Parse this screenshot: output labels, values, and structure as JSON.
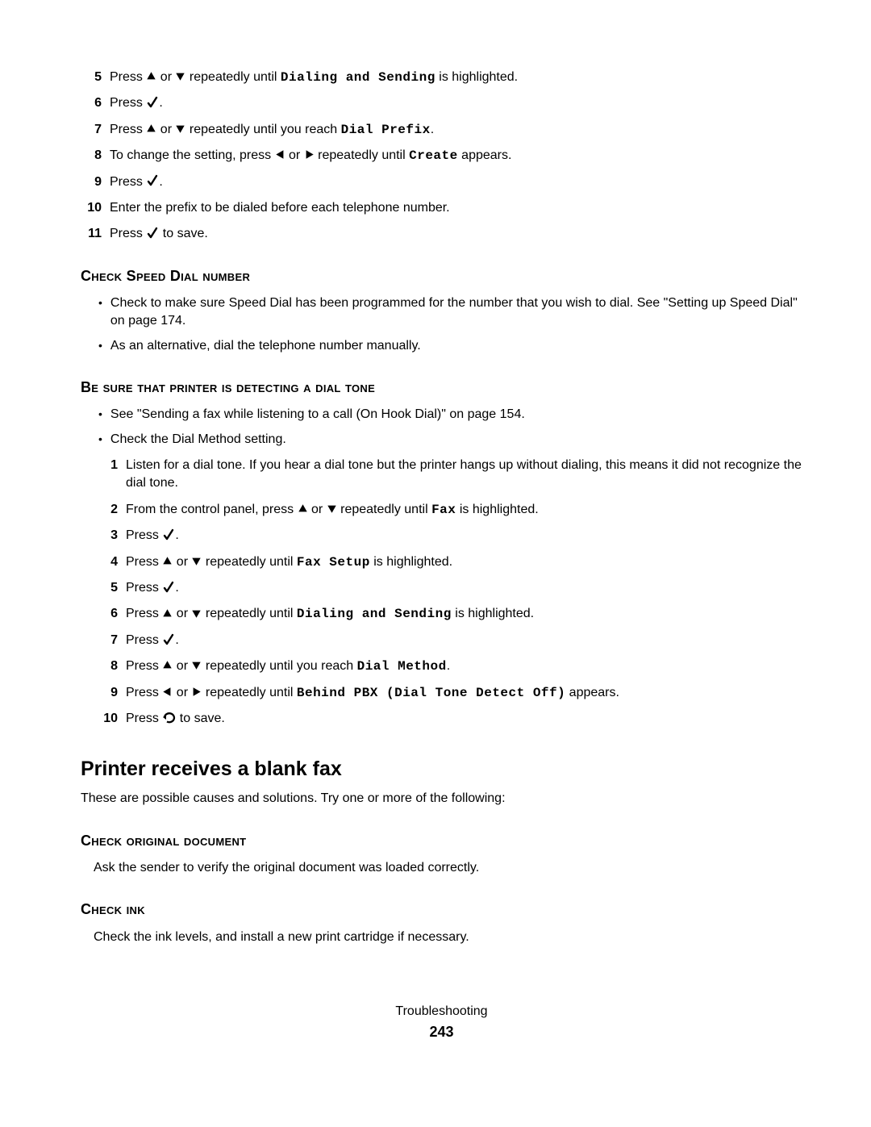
{
  "icons": {
    "up": "▲",
    "down": "▼",
    "left": "◀",
    "right": "▶",
    "check": "√",
    "back": "↶"
  },
  "steps1": [
    {
      "n": "5",
      "parts": [
        {
          "t": "Press "
        },
        {
          "icon": "up"
        },
        {
          "t": " or "
        },
        {
          "icon": "down"
        },
        {
          "t": " repeatedly until "
        },
        {
          "mono": "Dialing and Sending"
        },
        {
          "t": " is highlighted."
        }
      ]
    },
    {
      "n": "6",
      "parts": [
        {
          "t": "Press "
        },
        {
          "icon": "check"
        },
        {
          "t": "."
        }
      ]
    },
    {
      "n": "7",
      "parts": [
        {
          "t": "Press "
        },
        {
          "icon": "up"
        },
        {
          "t": " or "
        },
        {
          "icon": "down"
        },
        {
          "t": " repeatedly until you reach "
        },
        {
          "mono": "Dial Prefix"
        },
        {
          "t": "."
        }
      ]
    },
    {
      "n": "8",
      "parts": [
        {
          "t": "To change the setting, press "
        },
        {
          "icon": "left"
        },
        {
          "t": " or "
        },
        {
          "icon": "right"
        },
        {
          "t": " repeatedly until "
        },
        {
          "mono": "Create"
        },
        {
          "t": " appears."
        }
      ]
    },
    {
      "n": "9",
      "parts": [
        {
          "t": "Press "
        },
        {
          "icon": "check"
        },
        {
          "t": "."
        }
      ]
    },
    {
      "n": "10",
      "parts": [
        {
          "t": "Enter the prefix to be dialed before each telephone number."
        }
      ]
    },
    {
      "n": "11",
      "parts": [
        {
          "t": "Press "
        },
        {
          "icon": "check"
        },
        {
          "t": " to save."
        }
      ]
    }
  ],
  "sec1": {
    "title": "Check Speed Dial number",
    "bullets": [
      [
        {
          "t": "Check to make sure Speed Dial has been programmed for the number that you wish to dial. See \"Setting up Speed Dial\" on page 174."
        }
      ],
      [
        {
          "t": "As an alternative, dial the telephone number manually."
        }
      ]
    ]
  },
  "sec2": {
    "title": "Be sure that printer is detecting a dial tone",
    "bullets": [
      [
        {
          "t": "See \"Sending a fax while listening to a call (On Hook Dial)\" on page 154."
        }
      ],
      [
        {
          "t": "Check the Dial Method setting."
        }
      ]
    ],
    "steps": [
      {
        "n": "1",
        "parts": [
          {
            "t": "Listen for a dial tone. If you hear a dial tone but the printer hangs up without dialing, this means it did not recognize the dial tone."
          }
        ]
      },
      {
        "n": "2",
        "parts": [
          {
            "t": "From the control panel, press "
          },
          {
            "icon": "up"
          },
          {
            "t": " or "
          },
          {
            "icon": "down"
          },
          {
            "t": " repeatedly until "
          },
          {
            "mono": "Fax"
          },
          {
            "t": " is highlighted."
          }
        ]
      },
      {
        "n": "3",
        "parts": [
          {
            "t": "Press "
          },
          {
            "icon": "check"
          },
          {
            "t": "."
          }
        ]
      },
      {
        "n": "4",
        "parts": [
          {
            "t": "Press "
          },
          {
            "icon": "up"
          },
          {
            "t": " or "
          },
          {
            "icon": "down"
          },
          {
            "t": " repeatedly until "
          },
          {
            "mono": "Fax Setup"
          },
          {
            "t": " is highlighted."
          }
        ]
      },
      {
        "n": "5",
        "parts": [
          {
            "t": "Press "
          },
          {
            "icon": "check"
          },
          {
            "t": "."
          }
        ]
      },
      {
        "n": "6",
        "parts": [
          {
            "t": "Press "
          },
          {
            "icon": "up"
          },
          {
            "t": " or "
          },
          {
            "icon": "down"
          },
          {
            "t": " repeatedly until "
          },
          {
            "mono": "Dialing and Sending"
          },
          {
            "t": " is highlighted."
          }
        ]
      },
      {
        "n": "7",
        "parts": [
          {
            "t": "Press "
          },
          {
            "icon": "check"
          },
          {
            "t": "."
          }
        ]
      },
      {
        "n": "8",
        "parts": [
          {
            "t": "Press "
          },
          {
            "icon": "up"
          },
          {
            "t": " or "
          },
          {
            "icon": "down"
          },
          {
            "t": " repeatedly until you reach "
          },
          {
            "mono": "Dial Method"
          },
          {
            "t": "."
          }
        ]
      },
      {
        "n": "9",
        "parts": [
          {
            "t": "Press "
          },
          {
            "icon": "left"
          },
          {
            "t": " or "
          },
          {
            "icon": "right"
          },
          {
            "t": " repeatedly until "
          },
          {
            "mono": "Behind PBX (Dial Tone Detect Off)"
          },
          {
            "t": " appears."
          }
        ]
      },
      {
        "n": "10",
        "parts": [
          {
            "t": "Press "
          },
          {
            "icon": "back"
          },
          {
            "t": " to save."
          }
        ]
      }
    ]
  },
  "main2": {
    "title": "Printer receives a blank fax",
    "intro": "These are possible causes and solutions. Try one or more of the following:"
  },
  "sec3": {
    "title": "Check original document",
    "text": "Ask the sender to verify the original document was loaded correctly."
  },
  "sec4": {
    "title": "Check ink",
    "text": "Check the ink levels, and install a new print cartridge if necessary."
  },
  "footer": {
    "title": "Troubleshooting",
    "page": "243"
  }
}
